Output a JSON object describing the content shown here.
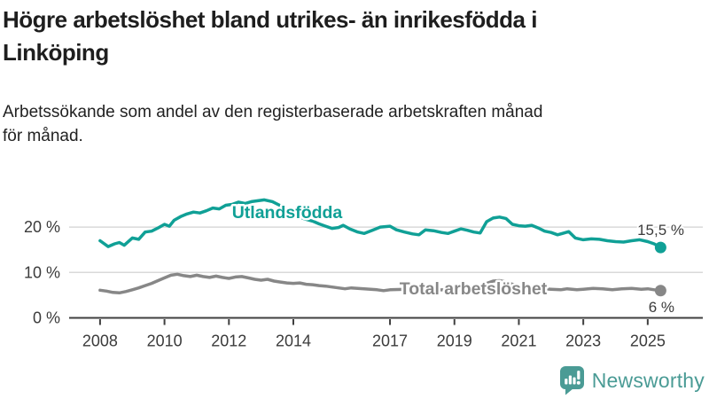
{
  "header": {
    "title_lines": [
      "Högre arbetslöshet bland utrikes- än inrikesfödda i",
      "Linköping"
    ],
    "subtitle_lines": [
      "Arbetssökande som andel av den registerbaserade arbetskraften månad",
      "för månad."
    ]
  },
  "branding": {
    "logo_text": "Newsworthy",
    "logo_icon": "newsworthy-speech-bubble-bar-chart-icon",
    "logo_color": "#4a9b95"
  },
  "colors": {
    "title_text": "#1e1e1e",
    "axis_text": "#3b3b3b",
    "axis_line": "#3f3f3f",
    "gridline": "#d9d9d9",
    "series_teal": "#10a096",
    "series_grey": "#878787",
    "halo": "#ffffff"
  },
  "chart_data": {
    "type": "line",
    "title": "Högre arbetslöshet bland utrikes- än inrikesfödda i Linköping",
    "subtitle": "Arbetssökande som andel av den registerbaserade arbetskraften månad för månad.",
    "grid": "horizontal",
    "legend": "inline-series-labels",
    "xlim": [
      2007.7,
      2026.2
    ],
    "ylim": [
      0,
      27.5
    ],
    "x_ticks": [
      2008,
      2010,
      2012,
      2014,
      2017,
      2019,
      2021,
      2023,
      2025
    ],
    "x_tick_labels": [
      "2008",
      "2010",
      "2012",
      "2014",
      "2017",
      "2019",
      "2021",
      "2023",
      "2025"
    ],
    "y_ticks": [
      0,
      10,
      20
    ],
    "y_tick_labels": [
      "0 %",
      "10 %",
      "20 %"
    ],
    "series": [
      {
        "id": "utlandsfodda",
        "name": "Utlandsfödda",
        "color": "#10a096",
        "end_value": 15.5,
        "end_label": "15,5 %",
        "points": [
          [
            2008.0,
            17.0
          ],
          [
            2008.25,
            15.7
          ],
          [
            2008.45,
            16.3
          ],
          [
            2008.6,
            16.6
          ],
          [
            2008.75,
            16.0
          ],
          [
            2009.0,
            17.6
          ],
          [
            2009.2,
            17.3
          ],
          [
            2009.4,
            18.9
          ],
          [
            2009.6,
            19.1
          ],
          [
            2009.8,
            19.8
          ],
          [
            2010.0,
            20.6
          ],
          [
            2010.15,
            20.2
          ],
          [
            2010.3,
            21.5
          ],
          [
            2010.5,
            22.3
          ],
          [
            2010.7,
            22.9
          ],
          [
            2010.9,
            23.3
          ],
          [
            2011.1,
            23.1
          ],
          [
            2011.3,
            23.6
          ],
          [
            2011.5,
            24.2
          ],
          [
            2011.7,
            24.0
          ],
          [
            2011.9,
            24.8
          ],
          [
            2012.1,
            25.0
          ],
          [
            2012.3,
            25.5
          ],
          [
            2012.5,
            25.2
          ],
          [
            2012.7,
            25.6
          ],
          [
            2012.9,
            25.8
          ],
          [
            2013.1,
            26.0
          ],
          [
            2013.35,
            25.6
          ],
          [
            2013.6,
            24.7
          ],
          [
            2013.85,
            23.6
          ],
          [
            2014.1,
            22.5
          ],
          [
            2014.35,
            21.8
          ],
          [
            2014.6,
            21.3
          ],
          [
            2014.8,
            20.7
          ],
          [
            2015.0,
            20.2
          ],
          [
            2015.2,
            19.7
          ],
          [
            2015.4,
            19.9
          ],
          [
            2015.55,
            20.4
          ],
          [
            2015.75,
            19.6
          ],
          [
            2016.0,
            18.9
          ],
          [
            2016.2,
            18.6
          ],
          [
            2016.45,
            19.3
          ],
          [
            2016.7,
            20.0
          ],
          [
            2017.0,
            20.2
          ],
          [
            2017.2,
            19.4
          ],
          [
            2017.45,
            18.9
          ],
          [
            2017.7,
            18.5
          ],
          [
            2017.9,
            18.3
          ],
          [
            2018.1,
            19.4
          ],
          [
            2018.35,
            19.2
          ],
          [
            2018.6,
            18.8
          ],
          [
            2018.8,
            18.6
          ],
          [
            2019.0,
            19.1
          ],
          [
            2019.2,
            19.6
          ],
          [
            2019.4,
            19.3
          ],
          [
            2019.6,
            18.9
          ],
          [
            2019.8,
            18.7
          ],
          [
            2020.0,
            21.2
          ],
          [
            2020.2,
            22.0
          ],
          [
            2020.4,
            22.2
          ],
          [
            2020.6,
            21.9
          ],
          [
            2020.8,
            20.6
          ],
          [
            2021.0,
            20.3
          ],
          [
            2021.2,
            20.2
          ],
          [
            2021.4,
            20.4
          ],
          [
            2021.6,
            19.8
          ],
          [
            2021.8,
            19.1
          ],
          [
            2022.0,
            18.8
          ],
          [
            2022.2,
            18.3
          ],
          [
            2022.4,
            18.7
          ],
          [
            2022.55,
            19.0
          ],
          [
            2022.75,
            17.6
          ],
          [
            2023.0,
            17.2
          ],
          [
            2023.25,
            17.4
          ],
          [
            2023.5,
            17.3
          ],
          [
            2023.75,
            17.0
          ],
          [
            2024.0,
            16.8
          ],
          [
            2024.25,
            16.7
          ],
          [
            2024.5,
            17.0
          ],
          [
            2024.75,
            17.2
          ],
          [
            2025.0,
            16.8
          ],
          [
            2025.2,
            16.3
          ],
          [
            2025.4,
            15.5
          ]
        ]
      },
      {
        "id": "total-arbetsloshet",
        "name": "Total arbetslöshet",
        "color": "#878787",
        "end_value": 6.0,
        "end_label": "6 %",
        "points": [
          [
            2008.0,
            6.1
          ],
          [
            2008.2,
            5.9
          ],
          [
            2008.4,
            5.6
          ],
          [
            2008.6,
            5.5
          ],
          [
            2008.8,
            5.8
          ],
          [
            2009.0,
            6.2
          ],
          [
            2009.2,
            6.6
          ],
          [
            2009.4,
            7.1
          ],
          [
            2009.6,
            7.6
          ],
          [
            2009.8,
            8.2
          ],
          [
            2010.0,
            8.8
          ],
          [
            2010.2,
            9.4
          ],
          [
            2010.4,
            9.6
          ],
          [
            2010.6,
            9.3
          ],
          [
            2010.8,
            9.1
          ],
          [
            2011.0,
            9.4
          ],
          [
            2011.2,
            9.1
          ],
          [
            2011.4,
            8.9
          ],
          [
            2011.6,
            9.2
          ],
          [
            2011.8,
            8.9
          ],
          [
            2012.0,
            8.7
          ],
          [
            2012.2,
            9.0
          ],
          [
            2012.4,
            9.1
          ],
          [
            2012.6,
            8.8
          ],
          [
            2012.8,
            8.5
          ],
          [
            2013.0,
            8.3
          ],
          [
            2013.2,
            8.5
          ],
          [
            2013.4,
            8.1
          ],
          [
            2013.6,
            7.9
          ],
          [
            2013.8,
            7.7
          ],
          [
            2014.0,
            7.6
          ],
          [
            2014.2,
            7.7
          ],
          [
            2014.4,
            7.4
          ],
          [
            2014.6,
            7.3
          ],
          [
            2014.8,
            7.1
          ],
          [
            2015.0,
            7.0
          ],
          [
            2015.2,
            6.8
          ],
          [
            2015.4,
            6.6
          ],
          [
            2015.6,
            6.4
          ],
          [
            2015.8,
            6.6
          ],
          [
            2016.0,
            6.5
          ],
          [
            2016.2,
            6.4
          ],
          [
            2016.4,
            6.3
          ],
          [
            2016.6,
            6.2
          ],
          [
            2016.8,
            6.0
          ],
          [
            2017.0,
            6.2
          ],
          [
            2017.5,
            6.3
          ],
          [
            2018.0,
            6.3
          ],
          [
            2018.5,
            6.2
          ],
          [
            2019.0,
            6.1
          ],
          [
            2019.5,
            6.3
          ],
          [
            2020.0,
            7.6
          ],
          [
            2020.2,
            8.1
          ],
          [
            2020.4,
            8.2
          ],
          [
            2020.6,
            7.9
          ],
          [
            2020.8,
            7.4
          ],
          [
            2021.0,
            7.0
          ],
          [
            2021.3,
            6.7
          ],
          [
            2021.6,
            6.5
          ],
          [
            2022.0,
            6.3
          ],
          [
            2022.3,
            6.2
          ],
          [
            2022.5,
            6.4
          ],
          [
            2022.8,
            6.2
          ],
          [
            2023.0,
            6.3
          ],
          [
            2023.3,
            6.5
          ],
          [
            2023.6,
            6.4
          ],
          [
            2023.9,
            6.2
          ],
          [
            2024.2,
            6.4
          ],
          [
            2024.5,
            6.5
          ],
          [
            2024.8,
            6.3
          ],
          [
            2025.0,
            6.4
          ],
          [
            2025.2,
            6.2
          ],
          [
            2025.4,
            6.0
          ]
        ]
      }
    ]
  }
}
